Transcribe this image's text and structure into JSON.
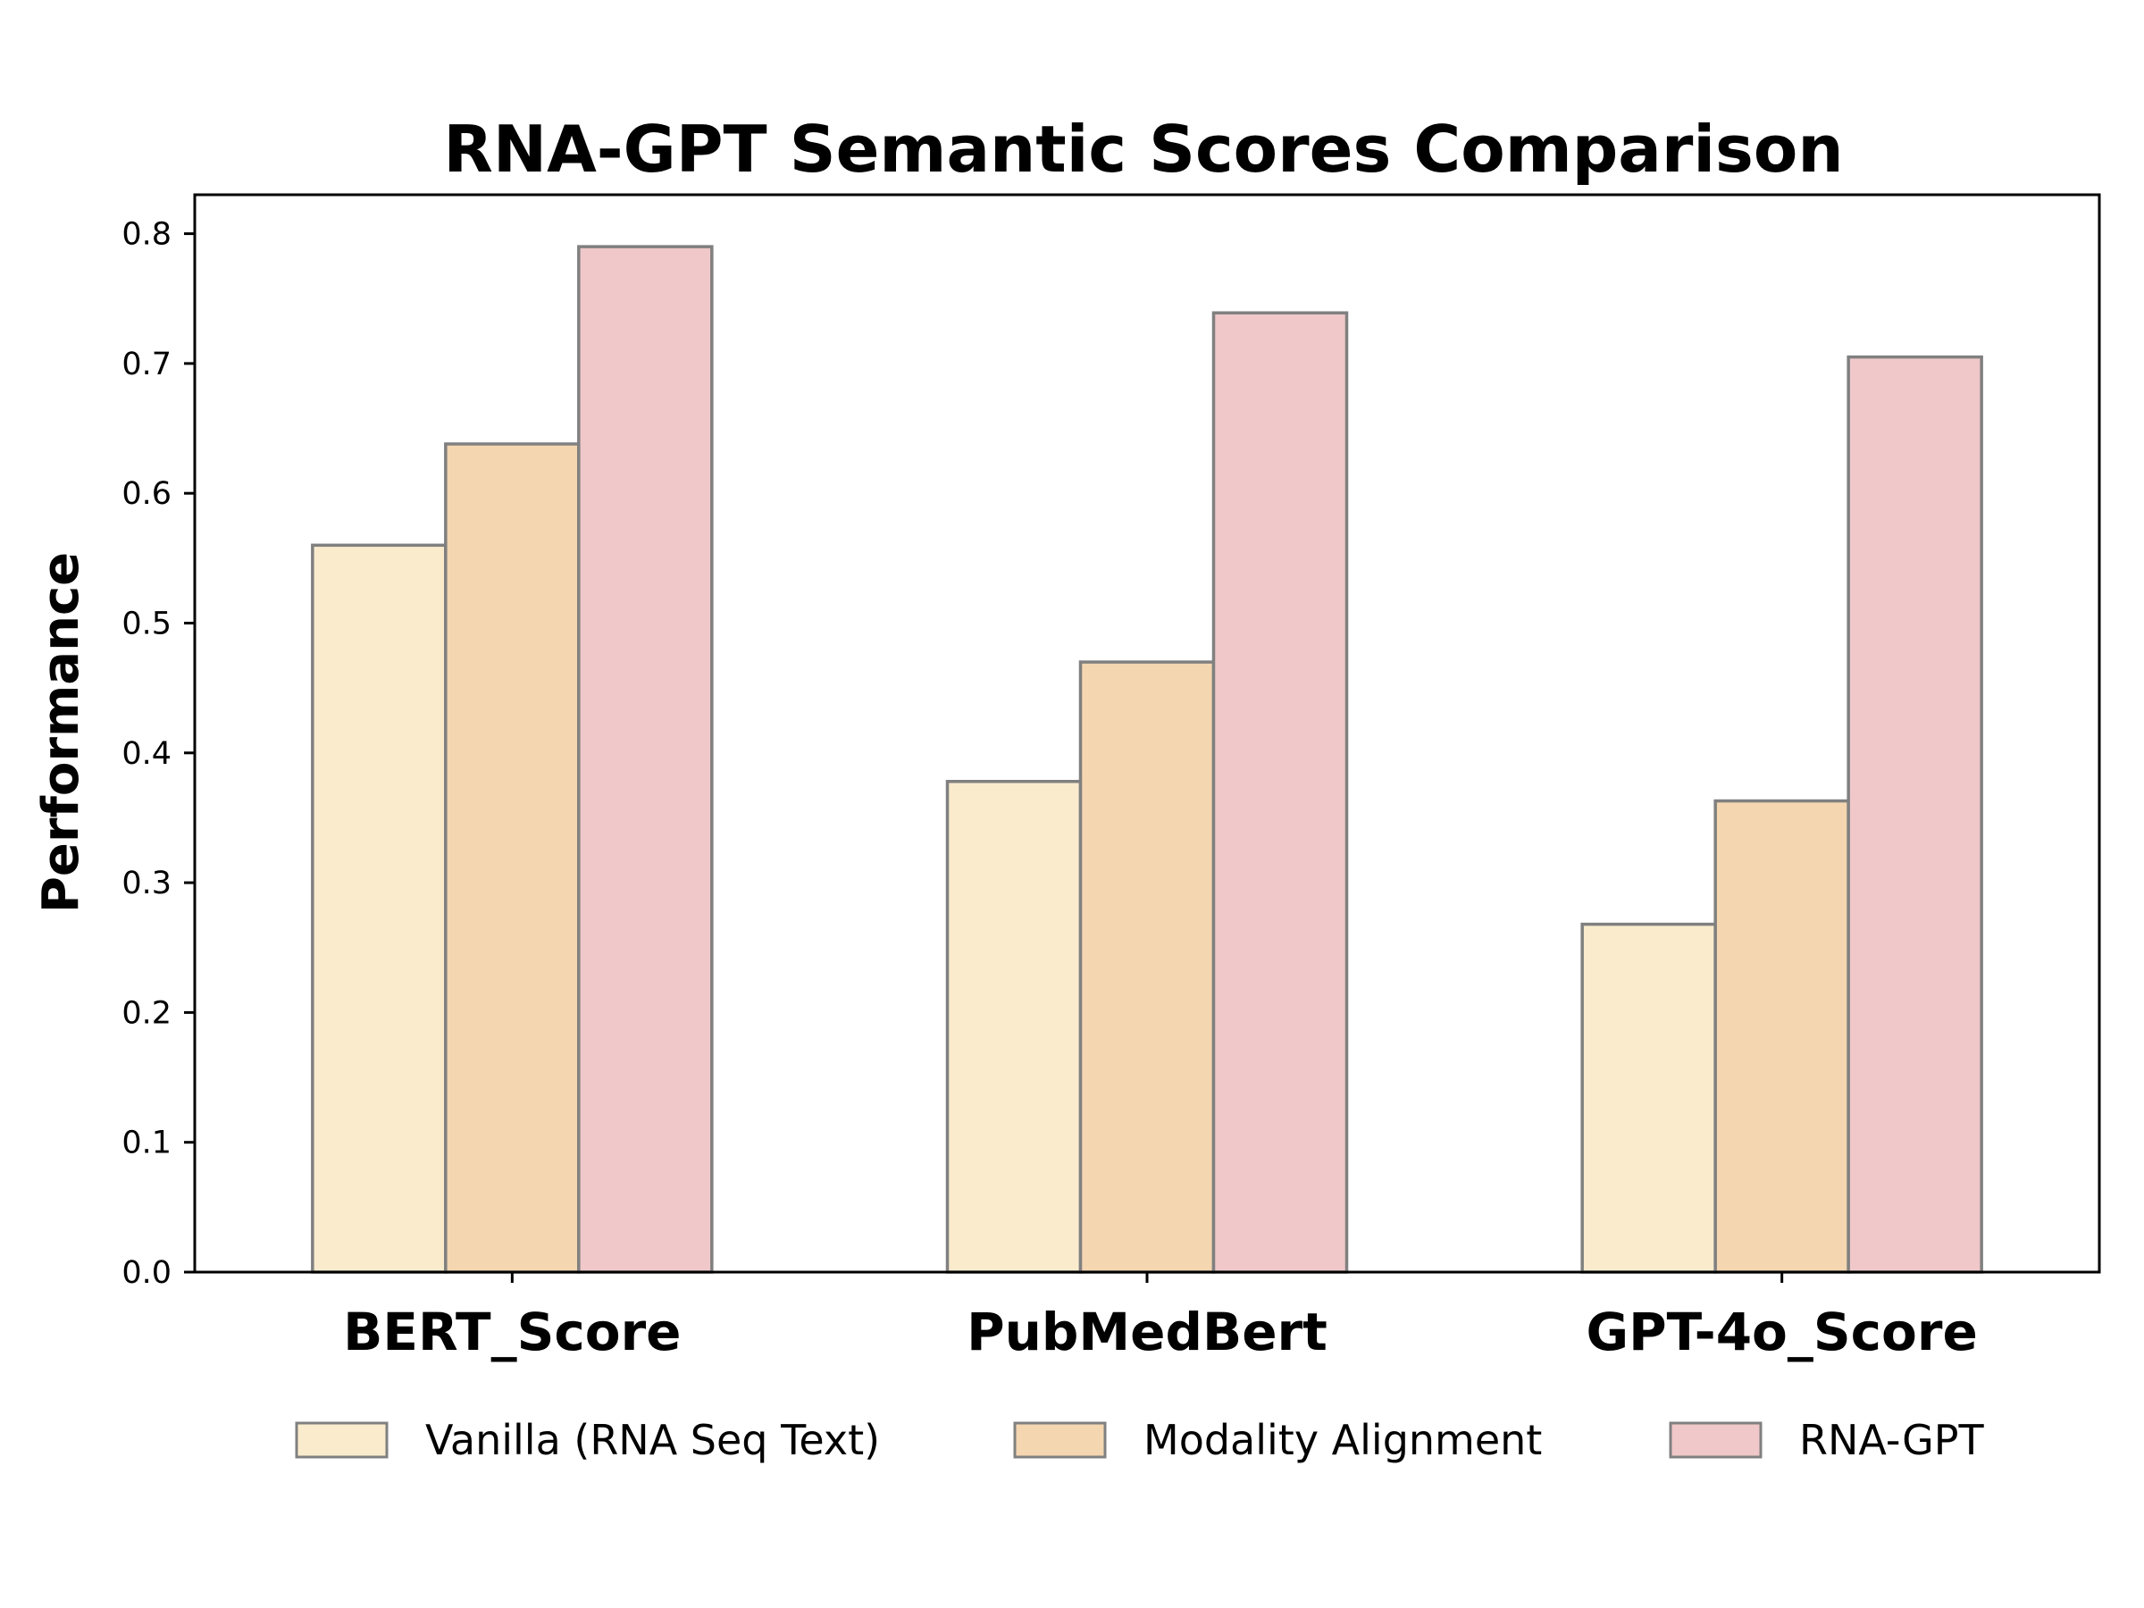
{
  "chart_data": {
    "type": "bar",
    "title": "RNA-GPT Semantic Scores Comparison",
    "xlabel": "",
    "ylabel": "Performance",
    "categories": [
      "BERT_Score",
      "PubMedBert",
      "GPT-4o_Score"
    ],
    "series": [
      {
        "name": "Vanilla (RNA Seq Text)",
        "values": [
          0.56,
          0.378,
          0.268
        ],
        "color": "#faebcd"
      },
      {
        "name": "Modality Alignment",
        "values": [
          0.638,
          0.47,
          0.363
        ],
        "color": "#f4d6b1"
      },
      {
        "name": "RNA-GPT",
        "values": [
          0.79,
          0.739,
          0.705
        ],
        "color": "#f0c8c9"
      }
    ],
    "ylim": [
      0,
      0.83
    ],
    "yticks": [
      "0.0",
      "0.1",
      "0.2",
      "0.3",
      "0.4",
      "0.5",
      "0.6",
      "0.7",
      "0.8"
    ],
    "grid": false,
    "legend_position": "bottom"
  }
}
